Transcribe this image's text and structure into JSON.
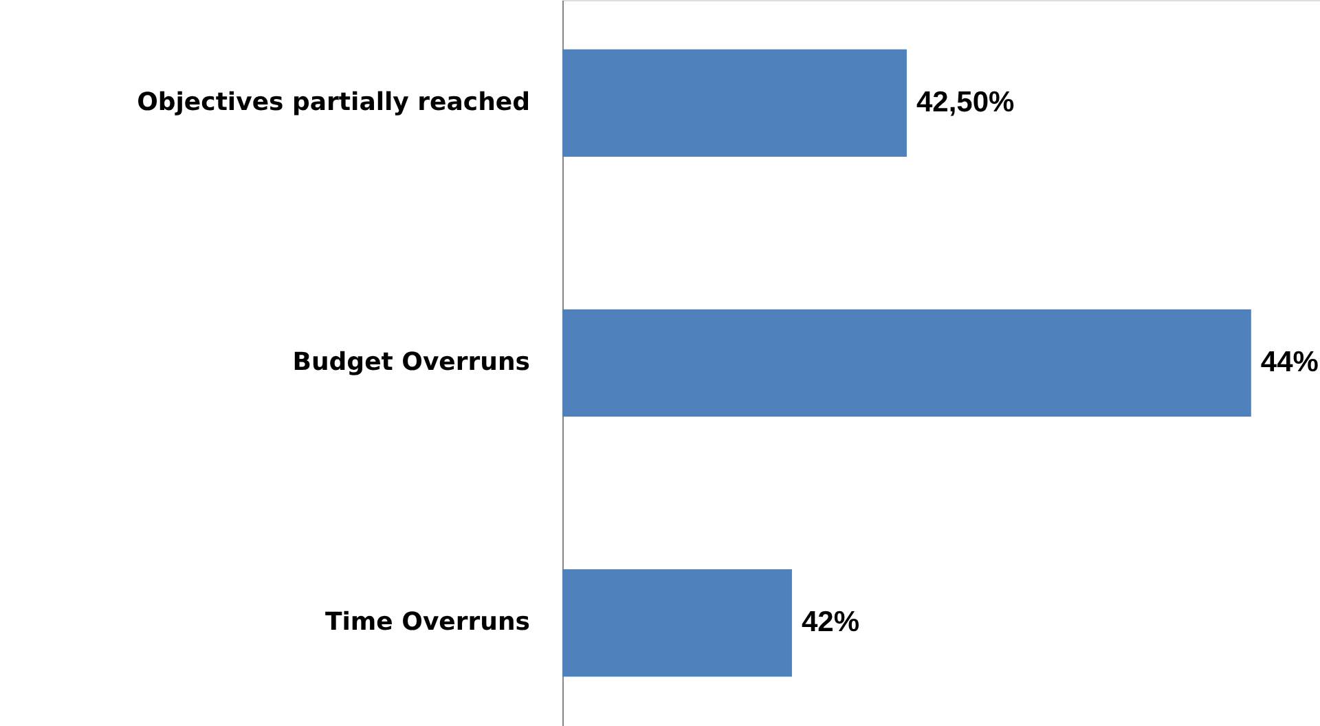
{
  "chart_data": {
    "type": "bar",
    "orientation": "horizontal",
    "categories": [
      "Objectives partially reached",
      "Budget Overruns",
      "Time Overruns"
    ],
    "values": [
      42.5,
      44,
      42
    ],
    "value_labels": [
      "42,50%",
      "44%",
      "42%"
    ],
    "color": "#4f81bd",
    "xlim": [
      41,
      44.3
    ],
    "tick_labels": "y",
    "grid": false
  }
}
